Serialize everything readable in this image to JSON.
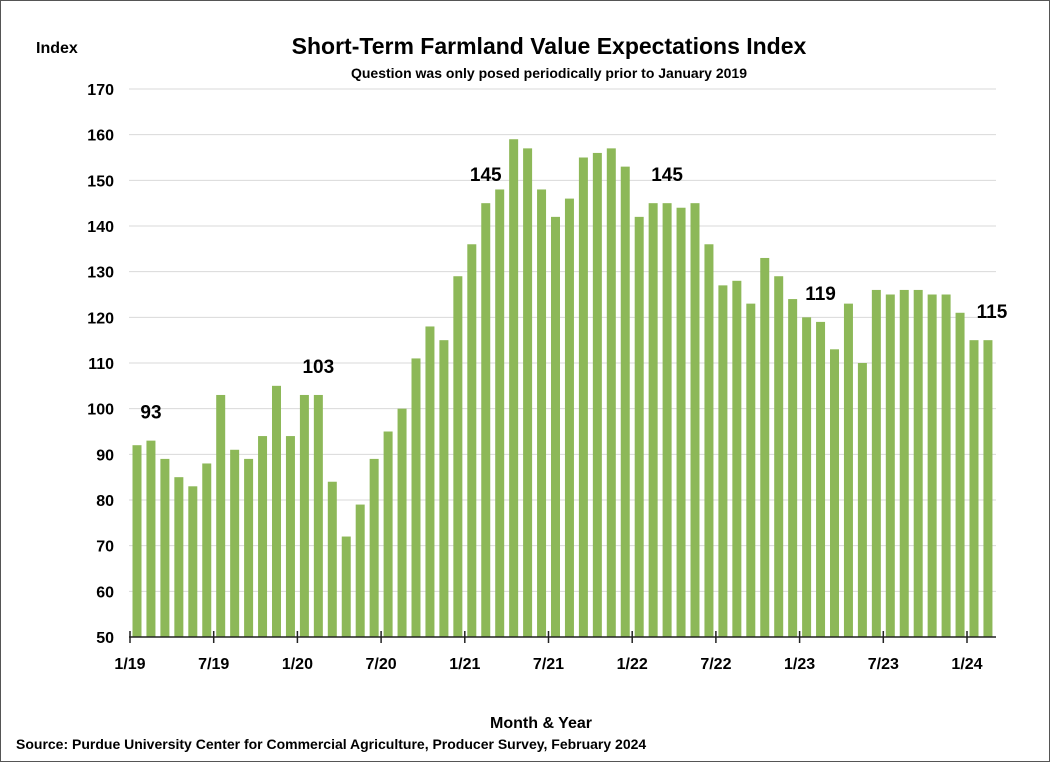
{
  "chart_data": {
    "type": "bar",
    "title": "Short-Term Farmland Value Expectations Index",
    "subtitle": "Question was only posed periodically prior to January 2019",
    "ylabel": "Index",
    "xlabel": "Month & Year",
    "source": "Source: Purdue University Center for Commercial Agriculture, Producer Survey, February 2024",
    "ylim": [
      50,
      170
    ],
    "yticks": [
      50,
      60,
      70,
      80,
      90,
      100,
      110,
      120,
      130,
      140,
      150,
      160,
      170
    ],
    "grid": true,
    "bar_color": "#8db858",
    "xtick_labels": [
      {
        "label": "1/19",
        "index": 0
      },
      {
        "label": "7/19",
        "index": 6
      },
      {
        "label": "1/20",
        "index": 12
      },
      {
        "label": "7/20",
        "index": 18
      },
      {
        "label": "1/21",
        "index": 24
      },
      {
        "label": "7/21",
        "index": 30
      },
      {
        "label": "1/22",
        "index": 36
      },
      {
        "label": "7/22",
        "index": 42
      },
      {
        "label": "1/23",
        "index": 48
      },
      {
        "label": "7/23",
        "index": 54
      },
      {
        "label": "1/24",
        "index": 60
      }
    ],
    "categories": [
      "1/19",
      "2/19",
      "3/19",
      "4/19",
      "5/19",
      "6/19",
      "7/19",
      "8/19",
      "9/19",
      "10/19",
      "11/19",
      "12/19",
      "1/20",
      "2/20",
      "3/20",
      "4/20",
      "5/20",
      "6/20",
      "7/20",
      "8/20",
      "9/20",
      "10/20",
      "11/20",
      "12/20",
      "1/21",
      "2/21",
      "3/21",
      "4/21",
      "5/21",
      "6/21",
      "7/21",
      "8/21",
      "9/21",
      "10/21",
      "11/21",
      "12/21",
      "1/22",
      "2/22",
      "3/22",
      "4/22",
      "5/22",
      "6/22",
      "7/22",
      "8/22",
      "9/22",
      "10/22",
      "11/22",
      "12/22",
      "1/23",
      "2/23",
      "3/23",
      "4/23",
      "5/23",
      "6/23",
      "7/23",
      "8/23",
      "9/23",
      "10/23",
      "11/23",
      "12/23",
      "1/24",
      "2/24"
    ],
    "values": [
      92,
      93,
      89,
      85,
      83,
      88,
      103,
      91,
      89,
      94,
      105,
      94,
      103,
      103,
      84,
      72,
      79,
      89,
      95,
      100,
      111,
      118,
      115,
      129,
      136,
      145,
      148,
      159,
      157,
      148,
      142,
      146,
      155,
      156,
      157,
      153,
      142,
      145,
      145,
      144,
      145,
      136,
      127,
      128,
      123,
      133,
      129,
      124,
      120,
      119,
      113,
      123,
      110,
      126,
      125,
      126,
      126,
      125,
      125,
      121,
      115,
      115
    ],
    "annotations": [
      {
        "text": "93",
        "index": 1,
        "value": 93
      },
      {
        "text": "103",
        "index": 13,
        "value": 103
      },
      {
        "text": "145",
        "index": 25,
        "value": 145
      },
      {
        "text": "145",
        "index": 38,
        "value": 145
      },
      {
        "text": "119",
        "index": 49,
        "value": 119
      },
      {
        "text": "115",
        "index": 61,
        "value": 115
      }
    ]
  }
}
